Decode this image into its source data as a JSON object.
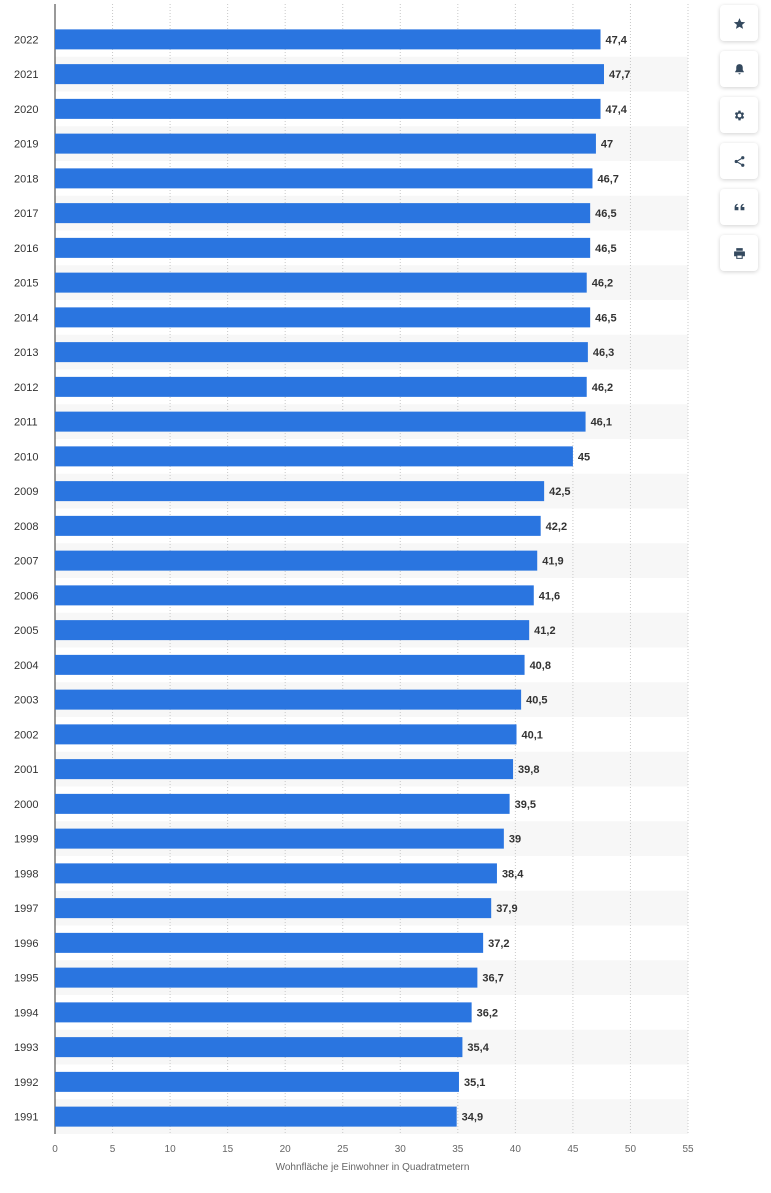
{
  "colors": {
    "bar": "#2a75e0",
    "band": "#f7f7f7",
    "grid": "#c8c8c8",
    "axis": "#333333",
    "icon": "#34495e"
  },
  "toolbar": [
    {
      "name": "favorite-button",
      "icon": "star-icon"
    },
    {
      "name": "notification-button",
      "icon": "bell-icon"
    },
    {
      "name": "settings-button",
      "icon": "gear-icon"
    },
    {
      "name": "share-button",
      "icon": "share-icon"
    },
    {
      "name": "cite-button",
      "icon": "quote-icon"
    },
    {
      "name": "print-button",
      "icon": "print-icon"
    }
  ],
  "chart_data": {
    "type": "bar",
    "orientation": "horizontal",
    "categories": [
      "2022",
      "2021",
      "2020",
      "2019",
      "2018",
      "2017",
      "2016",
      "2015",
      "2014",
      "2013",
      "2012",
      "2011",
      "2010",
      "2009",
      "2008",
      "2007",
      "2006",
      "2005",
      "2004",
      "2003",
      "2002",
      "2001",
      "2000",
      "1999",
      "1998",
      "1997",
      "1996",
      "1995",
      "1994",
      "1993",
      "1992",
      "1991"
    ],
    "values": [
      47.4,
      47.7,
      47.4,
      47,
      46.7,
      46.5,
      46.5,
      46.2,
      46.5,
      46.3,
      46.2,
      46.1,
      45,
      42.5,
      42.2,
      41.9,
      41.6,
      41.2,
      40.8,
      40.5,
      40.1,
      39.8,
      39.5,
      39,
      38.4,
      37.9,
      37.2,
      36.7,
      36.2,
      35.4,
      35.1,
      34.9
    ],
    "value_labels": [
      "47,4",
      "47,7",
      "47,4",
      "47",
      "46,7",
      "46,5",
      "46,5",
      "46,2",
      "46,5",
      "46,3",
      "46,2",
      "46,1",
      "45",
      "42,5",
      "42,2",
      "41,9",
      "41,6",
      "41,2",
      "40,8",
      "40,5",
      "40,1",
      "39,8",
      "39,5",
      "39",
      "38,4",
      "37,9",
      "37,2",
      "36,7",
      "36,2",
      "35,4",
      "35,1",
      "34,9"
    ],
    "xticks": [
      "0",
      "5",
      "10",
      "15",
      "20",
      "25",
      "30",
      "35",
      "40",
      "45",
      "50",
      "55"
    ],
    "xlim": [
      0,
      55
    ],
    "xlabel": "Wohnfläche je Einwohner in Quadratmetern",
    "ylabel": "",
    "title": "",
    "grid": true,
    "legend": false
  }
}
